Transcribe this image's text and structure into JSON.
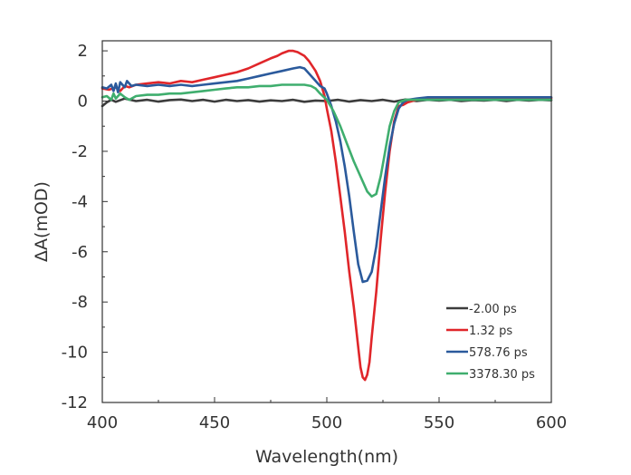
{
  "chart_data": {
    "type": "line",
    "title": "",
    "xlabel": "Wavelength(nm)",
    "ylabel": "ΔA(mOD)",
    "xlim": [
      400,
      600
    ],
    "ylim": [
      -12,
      2.4
    ],
    "xticks": [
      400,
      450,
      500,
      550,
      600
    ],
    "yticks": [
      -12,
      -10,
      -8,
      -6,
      -4,
      -2,
      0,
      2
    ],
    "grid": false,
    "legend_position": "bottom-right",
    "series": [
      {
        "name": "-2.00 ps",
        "color": "#3c3c3c",
        "points": [
          [
            400,
            -0.2
          ],
          [
            402,
            -0.05
          ],
          [
            404,
            0.05
          ],
          [
            406,
            -0.03
          ],
          [
            410,
            0.1
          ],
          [
            415,
            0.0
          ],
          [
            420,
            0.05
          ],
          [
            425,
            -0.02
          ],
          [
            430,
            0.04
          ],
          [
            435,
            0.06
          ],
          [
            440,
            0.0
          ],
          [
            445,
            0.05
          ],
          [
            450,
            -0.02
          ],
          [
            455,
            0.05
          ],
          [
            460,
            0.0
          ],
          [
            465,
            0.04
          ],
          [
            470,
            -0.02
          ],
          [
            475,
            0.03
          ],
          [
            480,
            0.0
          ],
          [
            485,
            0.05
          ],
          [
            490,
            -0.03
          ],
          [
            495,
            0.02
          ],
          [
            500,
            0.0
          ],
          [
            505,
            0.05
          ],
          [
            510,
            -0.02
          ],
          [
            515,
            0.04
          ],
          [
            520,
            0.0
          ],
          [
            525,
            0.05
          ],
          [
            530,
            -0.02
          ],
          [
            535,
            0.06
          ],
          [
            540,
            0.0
          ],
          [
            545,
            0.05
          ],
          [
            550,
            0.02
          ],
          [
            555,
            0.05
          ],
          [
            560,
            0.0
          ],
          [
            565,
            0.04
          ],
          [
            570,
            0.02
          ],
          [
            575,
            0.05
          ],
          [
            580,
            0.0
          ],
          [
            585,
            0.05
          ],
          [
            590,
            0.02
          ],
          [
            595,
            0.05
          ],
          [
            600,
            0.03
          ]
        ]
      },
      {
        "name": "1.32 ps",
        "color": "#e0262a",
        "points": [
          [
            400,
            0.5
          ],
          [
            403,
            0.45
          ],
          [
            406,
            0.55
          ],
          [
            408,
            0.4
          ],
          [
            410,
            0.6
          ],
          [
            412,
            0.55
          ],
          [
            415,
            0.65
          ],
          [
            420,
            0.7
          ],
          [
            425,
            0.75
          ],
          [
            430,
            0.7
          ],
          [
            435,
            0.8
          ],
          [
            440,
            0.75
          ],
          [
            445,
            0.85
          ],
          [
            450,
            0.95
          ],
          [
            455,
            1.05
          ],
          [
            460,
            1.15
          ],
          [
            465,
            1.3
          ],
          [
            470,
            1.5
          ],
          [
            475,
            1.7
          ],
          [
            478,
            1.8
          ],
          [
            480,
            1.9
          ],
          [
            483,
            2.0
          ],
          [
            485,
            2.0
          ],
          [
            487,
            1.95
          ],
          [
            490,
            1.8
          ],
          [
            492,
            1.6
          ],
          [
            495,
            1.2
          ],
          [
            497,
            0.8
          ],
          [
            499,
            0.2
          ],
          [
            500,
            -0.3
          ],
          [
            502,
            -1.2
          ],
          [
            504,
            -2.4
          ],
          [
            506,
            -3.8
          ],
          [
            508,
            -5.2
          ],
          [
            510,
            -6.8
          ],
          [
            512,
            -8.2
          ],
          [
            514,
            -9.8
          ],
          [
            515,
            -10.6
          ],
          [
            516,
            -11.0
          ],
          [
            517,
            -11.1
          ],
          [
            518,
            -10.9
          ],
          [
            519,
            -10.4
          ],
          [
            520,
            -9.4
          ],
          [
            522,
            -7.6
          ],
          [
            524,
            -5.5
          ],
          [
            526,
            -3.6
          ],
          [
            528,
            -2.0
          ],
          [
            530,
            -0.8
          ],
          [
            532,
            -0.2
          ],
          [
            534,
            -0.15
          ],
          [
            536,
            -0.05
          ],
          [
            540,
            0.05
          ],
          [
            545,
            0.1
          ],
          [
            550,
            0.1
          ],
          [
            560,
            0.12
          ],
          [
            570,
            0.12
          ],
          [
            580,
            0.12
          ],
          [
            590,
            0.12
          ],
          [
            600,
            0.12
          ]
        ]
      },
      {
        "name": "578.76 ps",
        "color": "#2b5a9c",
        "points": [
          [
            400,
            0.55
          ],
          [
            402,
            0.5
          ],
          [
            404,
            0.65
          ],
          [
            405,
            0.4
          ],
          [
            406,
            0.7
          ],
          [
            407,
            0.35
          ],
          [
            408,
            0.75
          ],
          [
            410,
            0.55
          ],
          [
            411,
            0.8
          ],
          [
            413,
            0.6
          ],
          [
            415,
            0.65
          ],
          [
            420,
            0.6
          ],
          [
            425,
            0.65
          ],
          [
            430,
            0.6
          ],
          [
            435,
            0.65
          ],
          [
            440,
            0.6
          ],
          [
            445,
            0.65
          ],
          [
            450,
            0.7
          ],
          [
            455,
            0.75
          ],
          [
            460,
            0.8
          ],
          [
            465,
            0.9
          ],
          [
            470,
            1.0
          ],
          [
            475,
            1.1
          ],
          [
            480,
            1.2
          ],
          [
            485,
            1.3
          ],
          [
            488,
            1.35
          ],
          [
            490,
            1.3
          ],
          [
            492,
            1.1
          ],
          [
            495,
            0.8
          ],
          [
            497,
            0.6
          ],
          [
            499,
            0.5
          ],
          [
            500,
            0.3
          ],
          [
            502,
            -0.2
          ],
          [
            504,
            -0.8
          ],
          [
            506,
            -1.6
          ],
          [
            508,
            -2.6
          ],
          [
            510,
            -3.8
          ],
          [
            512,
            -5.2
          ],
          [
            514,
            -6.5
          ],
          [
            516,
            -7.2
          ],
          [
            518,
            -7.15
          ],
          [
            520,
            -6.8
          ],
          [
            522,
            -5.8
          ],
          [
            524,
            -4.4
          ],
          [
            526,
            -3.0
          ],
          [
            528,
            -1.8
          ],
          [
            530,
            -0.9
          ],
          [
            532,
            -0.3
          ],
          [
            534,
            -0.05
          ],
          [
            536,
            0.05
          ],
          [
            540,
            0.1
          ],
          [
            545,
            0.15
          ],
          [
            550,
            0.15
          ],
          [
            560,
            0.15
          ],
          [
            570,
            0.15
          ],
          [
            580,
            0.15
          ],
          [
            590,
            0.15
          ],
          [
            600,
            0.15
          ]
        ]
      },
      {
        "name": "3378.30 ps",
        "color": "#3fae6e",
        "points": [
          [
            400,
            0.15
          ],
          [
            402,
            0.2
          ],
          [
            404,
            0.05
          ],
          [
            405,
            0.3
          ],
          [
            406,
            0.1
          ],
          [
            408,
            0.3
          ],
          [
            410,
            0.15
          ],
          [
            412,
            0.05
          ],
          [
            415,
            0.2
          ],
          [
            420,
            0.25
          ],
          [
            425,
            0.25
          ],
          [
            430,
            0.3
          ],
          [
            435,
            0.3
          ],
          [
            440,
            0.35
          ],
          [
            445,
            0.4
          ],
          [
            450,
            0.45
          ],
          [
            455,
            0.5
          ],
          [
            460,
            0.55
          ],
          [
            465,
            0.55
          ],
          [
            470,
            0.6
          ],
          [
            475,
            0.6
          ],
          [
            480,
            0.65
          ],
          [
            485,
            0.65
          ],
          [
            490,
            0.65
          ],
          [
            493,
            0.6
          ],
          [
            495,
            0.5
          ],
          [
            497,
            0.3
          ],
          [
            500,
            0.05
          ],
          [
            503,
            -0.4
          ],
          [
            506,
            -1.0
          ],
          [
            509,
            -1.7
          ],
          [
            512,
            -2.4
          ],
          [
            515,
            -3.0
          ],
          [
            518,
            -3.6
          ],
          [
            520,
            -3.8
          ],
          [
            522,
            -3.7
          ],
          [
            524,
            -3.0
          ],
          [
            526,
            -2.0
          ],
          [
            528,
            -1.0
          ],
          [
            530,
            -0.4
          ],
          [
            532,
            -0.05
          ],
          [
            535,
            0.05
          ],
          [
            540,
            0.05
          ],
          [
            545,
            0.05
          ],
          [
            550,
            0.05
          ],
          [
            560,
            0.05
          ],
          [
            570,
            0.05
          ],
          [
            580,
            0.05
          ],
          [
            590,
            0.05
          ],
          [
            600,
            0.05
          ]
        ]
      }
    ]
  }
}
